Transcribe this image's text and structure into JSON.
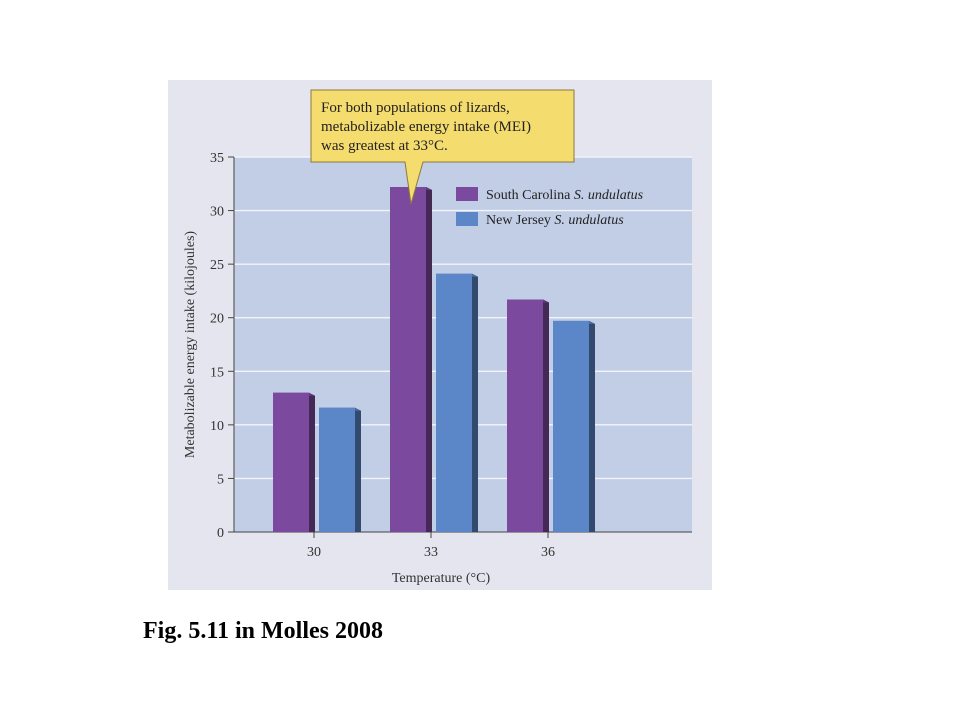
{
  "caption": "Fig. 5.11 in Molles 2008",
  "chart_data": {
    "type": "bar",
    "categories": [
      "30",
      "33",
      "36"
    ],
    "series": [
      {
        "name": "South Carolina S. undulatus",
        "name_main": "South Carolina",
        "name_species": "S. undulatus",
        "color": "#7b4a9e",
        "values": [
          13,
          32.2,
          21.7
        ]
      },
      {
        "name": "New Jersey S. undulatus",
        "name_main": "New Jersey",
        "name_species": "S. undulatus",
        "color": "#5b87c8",
        "values": [
          11.6,
          24.1,
          19.7
        ]
      }
    ],
    "xlabel": "Temperature (°C)",
    "ylabel": "Metabolizable energy intake (kilojoules)",
    "ylim": [
      0,
      35
    ],
    "yticks": [
      0,
      5,
      10,
      15,
      20,
      25,
      30,
      35
    ],
    "grid": true,
    "legend": "top-right",
    "plot_background": "#c2cde6",
    "annotation": {
      "lines": [
        "For both populations of lizards,",
        "metabolizable energy intake (MEI)",
        "was greatest at 33°C."
      ],
      "background": "#f5dc6e",
      "points_to_category": "33"
    }
  }
}
